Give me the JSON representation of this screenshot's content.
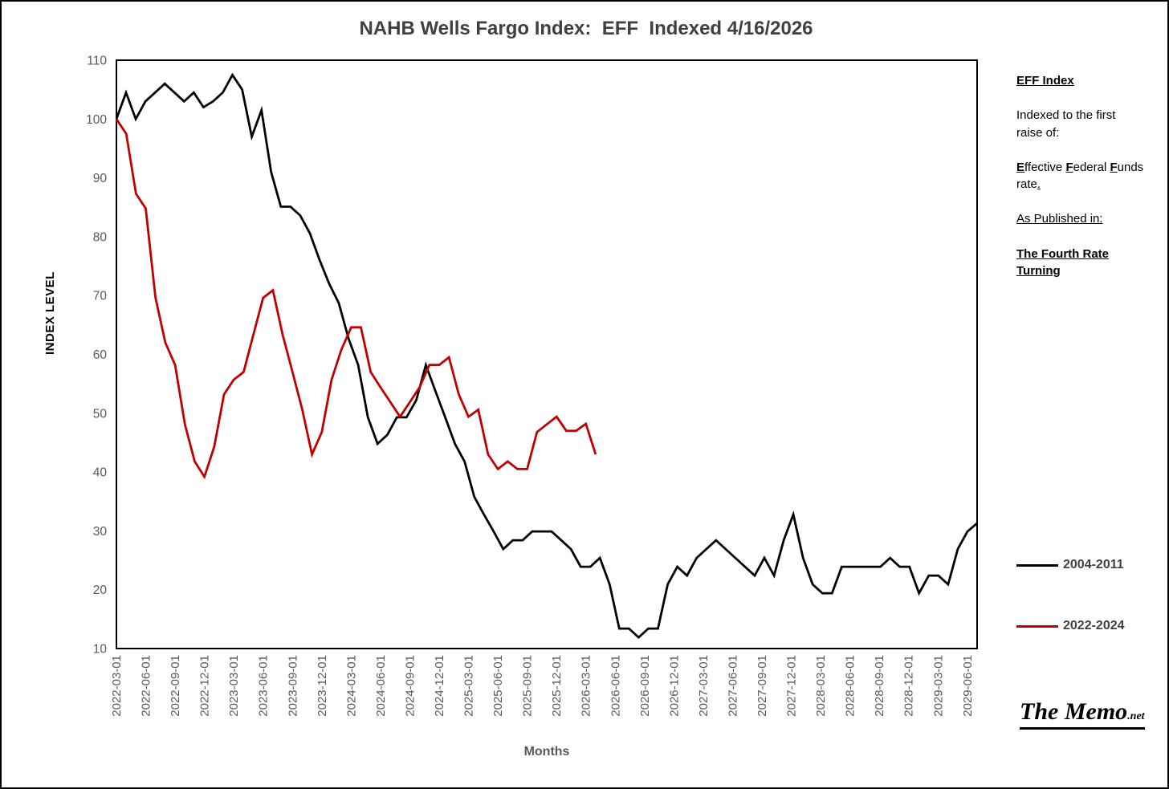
{
  "page": {
    "title": "NAHB Wells Fargo Index:  EFF  Indexed 4/16/2026"
  },
  "chart_data": {
    "type": "line",
    "title": "NAHB Wells Fargo Index:  EFF  Indexed 4/16/2026",
    "xlabel": "Months",
    "ylabel": "INDEX LEVEL",
    "ylim": [
      10,
      110
    ],
    "y_ticks": [
      10,
      20,
      30,
      40,
      50,
      60,
      70,
      80,
      90,
      100,
      110
    ],
    "grid": "off",
    "legend_position": "right",
    "months_domain": 88,
    "x_tick_step_months": 3,
    "x_tick_labels": [
      "2022-03-01",
      "2022-06-01",
      "2022-09-01",
      "2022-12-01",
      "2023-03-01",
      "2023-06-01",
      "2023-09-01",
      "2023-12-01",
      "2024-03-01",
      "2024-06-01",
      "2024-09-01",
      "2024-12-01",
      "2025-03-01",
      "2025-06-01",
      "2025-09-01",
      "2025-12-01",
      "2026-03-01",
      "2026-06-01",
      "2026-09-01",
      "2026-12-01",
      "2027-03-01",
      "2027-06-01",
      "2027-09-01",
      "2027-12-01",
      "2028-03-01",
      "2028-06-01",
      "2028-09-01",
      "2028-12-01",
      "2029-03-01",
      "2029-06-01"
    ],
    "series": [
      {
        "name": "2004-2011",
        "color": "#000000",
        "x_mode": "stretch",
        "values": [
          100,
          104.5,
          100,
          103,
          104.5,
          106,
          104.5,
          103,
          104.5,
          102,
          103,
          104.5,
          107.5,
          105,
          97,
          101.5,
          91,
          85.1,
          85.1,
          83.6,
          80.6,
          76.1,
          72,
          68.7,
          62.7,
          58.2,
          49.3,
          44.8,
          46.3,
          49.3,
          49.3,
          52.2,
          58.2,
          53.7,
          49.3,
          44.8,
          41.8,
          35.8,
          32.8,
          29.9,
          26.9,
          28.4,
          28.4,
          29.9,
          29.9,
          29.9,
          28.4,
          26.9,
          23.9,
          23.9,
          25.4,
          20.9,
          13.4,
          13.4,
          11.9,
          13.4,
          13.4,
          20.9,
          23.9,
          22.4,
          25.4,
          26.9,
          28.4,
          26.9,
          25.4,
          23.9,
          22.4,
          25.4,
          22.4,
          28.4,
          32.8,
          25.4,
          20.9,
          19.4,
          19.4,
          23.9,
          23.9,
          23.9,
          23.9,
          23.9,
          25.4,
          23.9,
          23.9,
          19.4,
          22.4,
          22.4,
          20.9,
          26.9,
          29.9,
          31.3
        ]
      },
      {
        "name": "2022-2024",
        "color": "#C00000",
        "x_mode": "monthly",
        "values": [
          100,
          97.5,
          87.3,
          84.8,
          69.6,
          62,
          58.2,
          48.1,
          41.8,
          39.2,
          44.3,
          53.2,
          55.7,
          57,
          63.3,
          69.6,
          70.9,
          63.3,
          57,
          50.6,
          43,
          46.8,
          55.7,
          60.8,
          64.6,
          64.6,
          57,
          54.4,
          51.9,
          49.4,
          51.9,
          54.4,
          58.2,
          58.2,
          59.5,
          53.2,
          49.4,
          50.6,
          43,
          40.5,
          41.8,
          40.5,
          40.5,
          46.8,
          48.1,
          49.4,
          47,
          47,
          48.2,
          43
        ]
      }
    ]
  },
  "side_panel": {
    "heading": "EFF Index",
    "para1": "Indexed to the first raise of:",
    "eff_segments": [
      {
        "t": "E",
        "s": "bu"
      },
      {
        "t": "ffective ",
        "s": ""
      },
      {
        "t": "F",
        "s": "bu"
      },
      {
        "t": "ederal ",
        "s": ""
      },
      {
        "t": "F",
        "s": "bu"
      },
      {
        "t": "unds rate",
        "s": ""
      },
      {
        "t": ".",
        "s": "u"
      }
    ],
    "para3": "As Published in:",
    "para4": "The Fourth Rate Turning"
  },
  "legend": {
    "items": [
      {
        "label": "2004-2011",
        "color": "#000000"
      },
      {
        "label": "2022-2024",
        "color": "#C00000"
      }
    ]
  },
  "watermark": {
    "main": "The Memo",
    "suffix": ".net"
  },
  "colors": {
    "tick_text": "#595959",
    "title_text": "#404040",
    "axis_line": "#000000"
  }
}
